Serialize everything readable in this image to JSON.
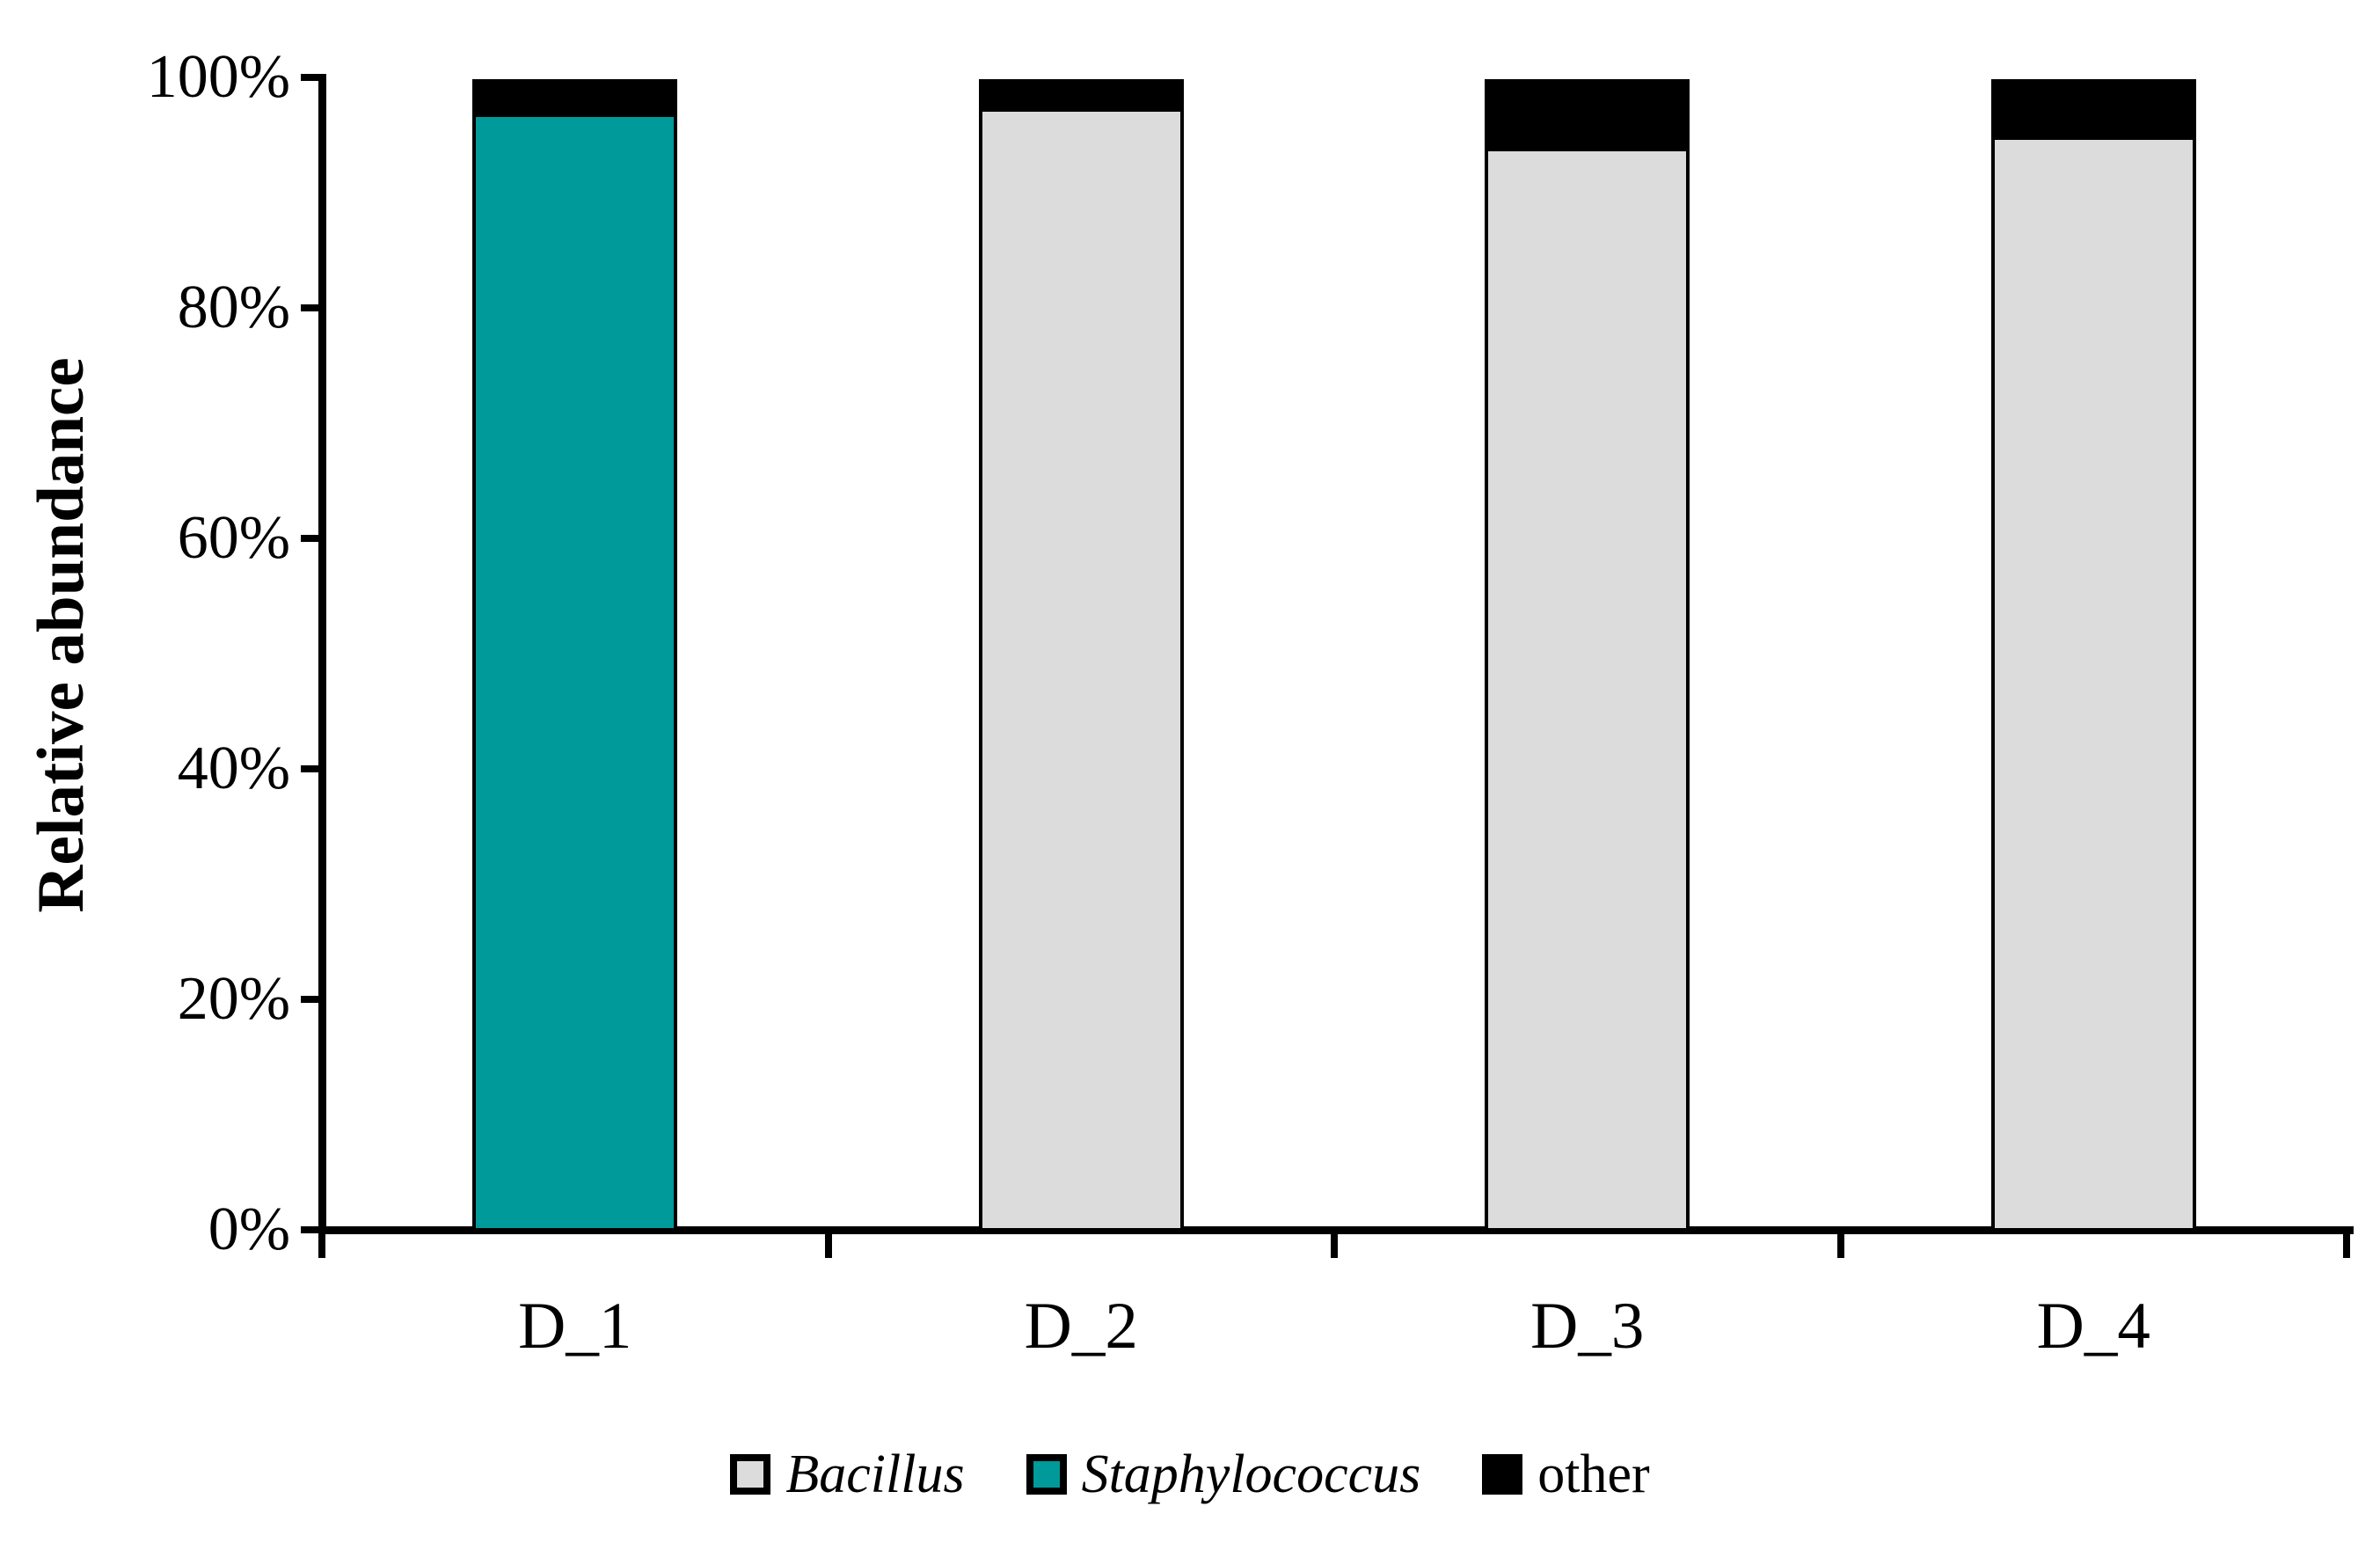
{
  "figure": {
    "background_color": "#FFFFFF",
    "axis_color": "#000000"
  },
  "chart_data": {
    "type": "bar",
    "stacked": true,
    "percent_stack": true,
    "title": "",
    "xlabel": "",
    "ylabel": "Relative abundance",
    "categories": [
      "D_1",
      "D_2",
      "D_3",
      "D_4"
    ],
    "series": [
      {
        "name": "Bacillus",
        "italic": true,
        "color": "#DCDCDC",
        "values": [
          0,
          97.5,
          94,
          95
        ]
      },
      {
        "name": "Staphylococcus",
        "italic": true,
        "color": "#009A9A",
        "values": [
          97,
          0,
          0,
          0
        ]
      },
      {
        "name": "other",
        "italic": false,
        "color": "#000000",
        "values": [
          3,
          2.5,
          6,
          5
        ]
      }
    ],
    "ylim": [
      0,
      100
    ],
    "ytick_labels": [
      "0%",
      "20%",
      "40%",
      "60%",
      "80%",
      "100%"
    ],
    "ytick_values": [
      0,
      20,
      40,
      60,
      80,
      100
    ],
    "grid": false,
    "bar_outline_color": "#000000",
    "legend_position": "bottom"
  }
}
